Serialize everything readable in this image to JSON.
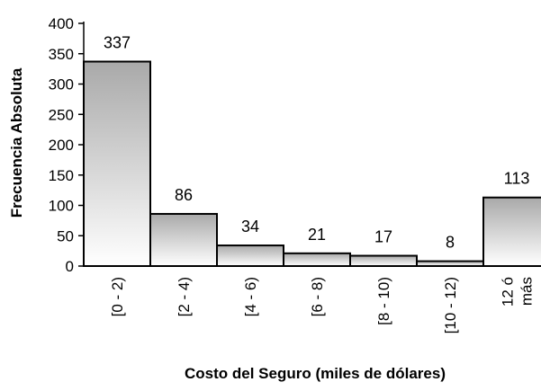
{
  "chart_data": {
    "type": "bar",
    "title": "",
    "xlabel": "Costo  del Seguro (miles de dólares)",
    "ylabel": "Frecuencia Absoluta",
    "categories": [
      "[0 - 2)",
      "[2 - 4)",
      "[4 - 6)",
      "[6 - 8)",
      "[8 - 10)",
      "[10 - 12)",
      "12 ó más"
    ],
    "category_lines": [
      [
        "[0 - 2)"
      ],
      [
        "[2 - 4)"
      ],
      [
        "[4 - 6)"
      ],
      [
        "[6 - 8)"
      ],
      [
        "[8 - 10)"
      ],
      [
        "[10 - 12)"
      ],
      [
        "12 ó",
        "más"
      ]
    ],
    "values": [
      337,
      86,
      34,
      21,
      17,
      8,
      113
    ],
    "data_labels": [
      "337",
      "86",
      "34",
      "21",
      "17",
      "8",
      "113"
    ],
    "ylim": [
      0,
      400
    ],
    "yticks": [
      "0",
      "50",
      "100",
      "150",
      "200",
      "250",
      "300",
      "350",
      "400"
    ],
    "grid": false,
    "legend": "none",
    "bar_gradient": [
      "#a9a9a9",
      "#ffffff"
    ]
  }
}
